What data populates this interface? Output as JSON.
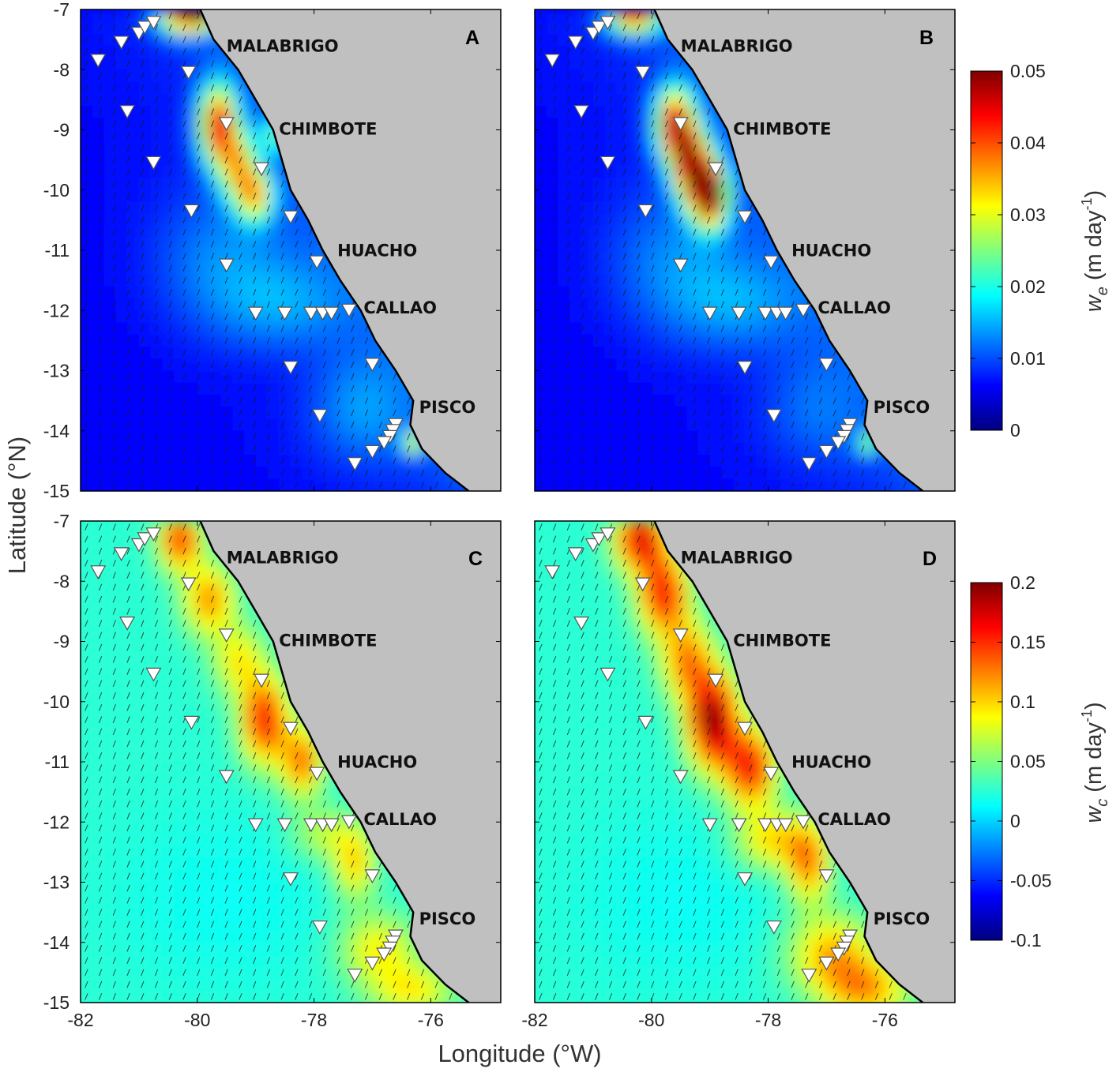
{
  "axes": {
    "xlabel": "Longitude (°W)",
    "ylabel": "Latitude (°N)",
    "xlim": [
      -82,
      -74.8
    ],
    "ylim": [
      -15,
      -7
    ],
    "xticks": [
      "-82",
      "-80",
      "-78",
      "-76"
    ],
    "yticks": [
      "-7",
      "-8",
      "-9",
      "-10",
      "-11",
      "-12",
      "-13",
      "-14",
      "-15"
    ]
  },
  "cities": [
    {
      "name": "MALABRIGO",
      "lon": -79.5,
      "lat": -7.7
    },
    {
      "name": "CHIMBOTE",
      "lon": -78.6,
      "lat": -9.08
    },
    {
      "name": "HUACHO",
      "lon": -77.6,
      "lat": -11.1
    },
    {
      "name": "CALLAO",
      "lon": -77.15,
      "lat": -12.05
    },
    {
      "name": "PISCO",
      "lon": -76.2,
      "lat": -13.7
    }
  ],
  "stations": [
    {
      "lon": -81.7,
      "lat": -7.85
    },
    {
      "lon": -81.3,
      "lat": -7.55
    },
    {
      "lon": -81.0,
      "lat": -7.4
    },
    {
      "lon": -80.9,
      "lat": -7.3
    },
    {
      "lon": -80.75,
      "lat": -7.22
    },
    {
      "lon": -80.15,
      "lat": -8.05
    },
    {
      "lon": -81.2,
      "lat": -8.7
    },
    {
      "lon": -79.5,
      "lat": -8.9
    },
    {
      "lon": -80.75,
      "lat": -9.55
    },
    {
      "lon": -78.9,
      "lat": -9.65
    },
    {
      "lon": -80.1,
      "lat": -10.35
    },
    {
      "lon": -78.4,
      "lat": -10.45
    },
    {
      "lon": -79.5,
      "lat": -11.25
    },
    {
      "lon": -77.95,
      "lat": -11.2
    },
    {
      "lon": -79.0,
      "lat": -12.05
    },
    {
      "lon": -78.5,
      "lat": -12.05
    },
    {
      "lon": -78.05,
      "lat": -12.05
    },
    {
      "lon": -77.85,
      "lat": -12.05
    },
    {
      "lon": -77.7,
      "lat": -12.05
    },
    {
      "lon": -77.4,
      "lat": -12.0
    },
    {
      "lon": -78.4,
      "lat": -12.95
    },
    {
      "lon": -77.0,
      "lat": -12.9
    },
    {
      "lon": -77.9,
      "lat": -13.75
    },
    {
      "lon": -76.6,
      "lat": -13.9
    },
    {
      "lon": -76.65,
      "lat": -14.0
    },
    {
      "lon": -76.7,
      "lat": -14.1
    },
    {
      "lon": -76.8,
      "lat": -14.2
    },
    {
      "lon": -77.0,
      "lat": -14.35
    },
    {
      "lon": -77.3,
      "lat": -14.55
    }
  ],
  "coastline": [
    [
      -79.95,
      -7.0
    ],
    [
      -79.72,
      -7.5
    ],
    [
      -79.3,
      -8.0
    ],
    [
      -79.0,
      -8.5
    ],
    [
      -78.7,
      -9.0
    ],
    [
      -78.55,
      -9.5
    ],
    [
      -78.4,
      -10.0
    ],
    [
      -78.1,
      -10.5
    ],
    [
      -77.85,
      -11.0
    ],
    [
      -77.55,
      -11.5
    ],
    [
      -77.2,
      -12.0
    ],
    [
      -76.95,
      -12.5
    ],
    [
      -76.6,
      -13.0
    ],
    [
      -76.3,
      -13.5
    ],
    [
      -76.35,
      -13.9
    ],
    [
      -76.15,
      -14.3
    ],
    [
      -75.75,
      -14.7
    ],
    [
      -75.35,
      -15.0
    ]
  ],
  "panels": [
    {
      "letter": "A",
      "field": "we"
    },
    {
      "letter": "B",
      "field": "we"
    },
    {
      "letter": "C",
      "field": "wc"
    },
    {
      "letter": "D",
      "field": "wc"
    }
  ],
  "colorbars": [
    {
      "label_main": "w",
      "label_sub": "e",
      "label_unit": "(m day",
      "label_exp": "-1",
      "label_close": ")",
      "vmin": 0,
      "vmax": 0.05,
      "ticks": [
        "0.05",
        "0.04",
        "0.03",
        "0.02",
        "0.01",
        "0"
      ]
    },
    {
      "label_main": "w",
      "label_sub": "c",
      "label_unit": "(m day",
      "label_exp": "-1",
      "label_close": ")",
      "vmin": -0.1,
      "vmax": 0.2,
      "ticks": [
        "0.2",
        "0.15",
        "0.1",
        "0.05",
        "0",
        "-0.05",
        "-0.1"
      ]
    }
  ],
  "colors": {
    "land": "#c0c0c0",
    "coast": "#000000",
    "marker_fill": "#ffffff",
    "marker_stroke": "#555555",
    "arrow": "#1a1a1a",
    "colormap": "jet"
  }
}
